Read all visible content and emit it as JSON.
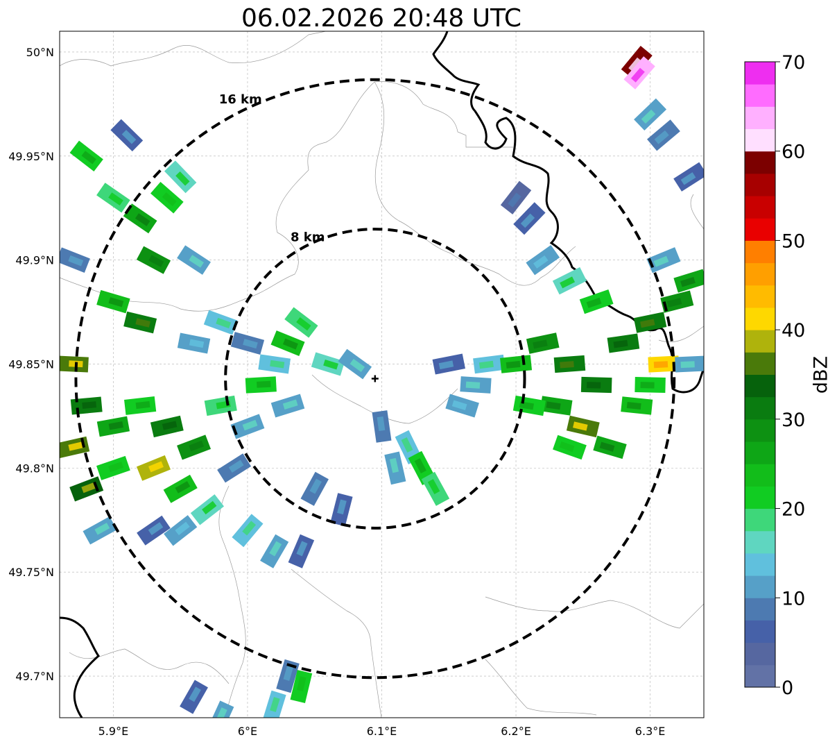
{
  "map": {
    "title": "06.02.2026 20:48 UTC",
    "extent": {
      "lon_min": 5.86,
      "lon_max": 6.34,
      "lat_min": 49.68,
      "lat_max": 50.01
    },
    "radar_center": {
      "lon": 6.095,
      "lat": 49.843
    },
    "x_ticks": [
      {
        "value": 5.9,
        "label": "5.9°E"
      },
      {
        "value": 6.0,
        "label": "6°E"
      },
      {
        "value": 6.1,
        "label": "6.1°E"
      },
      {
        "value": 6.2,
        "label": "6.2°E"
      },
      {
        "value": 6.3,
        "label": "6.3°E"
      }
    ],
    "y_ticks": [
      {
        "value": 50.0,
        "label": "50°N"
      },
      {
        "value": 49.95,
        "label": "49.95°N"
      },
      {
        "value": 49.9,
        "label": "49.9°N"
      },
      {
        "value": 49.85,
        "label": "49.85°N"
      },
      {
        "value": 49.8,
        "label": "49.8°N"
      },
      {
        "value": 49.75,
        "label": "49.75°N"
      },
      {
        "value": 49.7,
        "label": "49.7°N"
      }
    ],
    "range_rings": [
      {
        "radius_km": 8,
        "label": "8 km"
      },
      {
        "radius_km": 16,
        "label": "16 km"
      }
    ],
    "gridlines": true
  },
  "colorbar": {
    "label": "dBZ",
    "ticks": [
      "0",
      "10",
      "20",
      "30",
      "40",
      "50",
      "60",
      "70"
    ],
    "min": 0,
    "max": 70,
    "step": 2.5,
    "colors": [
      "#6272a6",
      "#5667a0",
      "#4661a8",
      "#4d7ab1",
      "#56a0c8",
      "#60c0dd",
      "#5fd6c0",
      "#3ed77a",
      "#11cc22",
      "#12bd1a",
      "#0ea616",
      "#0d9112",
      "#0a7c10",
      "#06620c",
      "#4a7a0a",
      "#afb30c",
      "#fed800",
      "#ffbb00",
      "#ff9f00",
      "#ff7f00",
      "#e90000",
      "#c90000",
      "#a70000",
      "#7c0000",
      "#ffdfff",
      "#ffb0ff",
      "#ff6cff",
      "#ee2ef0"
    ]
  },
  "reflectivity_cells": [
    {
      "lon": 5.88,
      "lat": 49.95,
      "dbz": 22
    },
    {
      "lon": 5.9,
      "lat": 49.93,
      "dbz": 18
    },
    {
      "lon": 5.92,
      "lat": 49.92,
      "dbz": 26
    },
    {
      "lon": 5.94,
      "lat": 49.93,
      "dbz": 20
    },
    {
      "lon": 5.93,
      "lat": 49.9,
      "dbz": 28
    },
    {
      "lon": 5.9,
      "lat": 49.88,
      "dbz": 24
    },
    {
      "lon": 5.87,
      "lat": 49.9,
      "dbz": 8
    },
    {
      "lon": 5.96,
      "lat": 49.9,
      "dbz": 12
    },
    {
      "lon": 5.91,
      "lat": 49.96,
      "dbz": 6
    },
    {
      "lon": 5.95,
      "lat": 49.94,
      "dbz": 16
    },
    {
      "lon": 5.92,
      "lat": 49.87,
      "dbz": 32
    },
    {
      "lon": 5.96,
      "lat": 49.86,
      "dbz": 10
    },
    {
      "lon": 5.98,
      "lat": 49.87,
      "dbz": 14
    },
    {
      "lon": 5.87,
      "lat": 49.85,
      "dbz": 36
    },
    {
      "lon": 5.88,
      "lat": 49.83,
      "dbz": 30
    },
    {
      "lon": 5.9,
      "lat": 49.82,
      "dbz": 26
    },
    {
      "lon": 5.92,
      "lat": 49.83,
      "dbz": 22
    },
    {
      "lon": 5.94,
      "lat": 49.82,
      "dbz": 30
    },
    {
      "lon": 5.96,
      "lat": 49.81,
      "dbz": 28
    },
    {
      "lon": 5.95,
      "lat": 49.79,
      "dbz": 24
    },
    {
      "lon": 5.93,
      "lat": 49.8,
      "dbz": 38
    },
    {
      "lon": 5.9,
      "lat": 49.8,
      "dbz": 20
    },
    {
      "lon": 5.88,
      "lat": 49.79,
      "dbz": 34
    },
    {
      "lon": 5.87,
      "lat": 49.81,
      "dbz": 37
    },
    {
      "lon": 5.98,
      "lat": 49.83,
      "dbz": 18
    },
    {
      "lon": 6.0,
      "lat": 49.82,
      "dbz": 12
    },
    {
      "lon": 5.99,
      "lat": 49.8,
      "dbz": 8
    },
    {
      "lon": 5.97,
      "lat": 49.78,
      "dbz": 16
    },
    {
      "lon": 5.95,
      "lat": 49.77,
      "dbz": 10
    },
    {
      "lon": 5.93,
      "lat": 49.77,
      "dbz": 6
    },
    {
      "lon": 6.0,
      "lat": 49.77,
      "dbz": 14
    },
    {
      "lon": 6.02,
      "lat": 49.76,
      "dbz": 12
    },
    {
      "lon": 6.04,
      "lat": 49.76,
      "dbz": 6
    },
    {
      "lon": 5.89,
      "lat": 49.77,
      "dbz": 12
    },
    {
      "lon": 6.01,
      "lat": 49.84,
      "dbz": 22
    },
    {
      "lon": 6.03,
      "lat": 49.86,
      "dbz": 24
    },
    {
      "lon": 6.04,
      "lat": 49.87,
      "dbz": 18
    },
    {
      "lon": 6.02,
      "lat": 49.85,
      "dbz": 14
    },
    {
      "lon": 6.03,
      "lat": 49.83,
      "dbz": 12
    },
    {
      "lon": 6.0,
      "lat": 49.86,
      "dbz": 8
    },
    {
      "lon": 6.06,
      "lat": 49.85,
      "dbz": 16
    },
    {
      "lon": 6.08,
      "lat": 49.85,
      "dbz": 12
    },
    {
      "lon": 6.1,
      "lat": 49.82,
      "dbz": 8
    },
    {
      "lon": 6.12,
      "lat": 49.81,
      "dbz": 14
    },
    {
      "lon": 6.13,
      "lat": 49.8,
      "dbz": 22
    },
    {
      "lon": 6.11,
      "lat": 49.8,
      "dbz": 12
    },
    {
      "lon": 6.14,
      "lat": 49.79,
      "dbz": 18
    },
    {
      "lon": 6.07,
      "lat": 49.78,
      "dbz": 6
    },
    {
      "lon": 6.05,
      "lat": 49.79,
      "dbz": 8
    },
    {
      "lon": 6.15,
      "lat": 49.85,
      "dbz": 6
    },
    {
      "lon": 6.17,
      "lat": 49.84,
      "dbz": 12
    },
    {
      "lon": 6.18,
      "lat": 49.85,
      "dbz": 14
    },
    {
      "lon": 6.16,
      "lat": 49.83,
      "dbz": 10
    },
    {
      "lon": 6.2,
      "lat": 49.85,
      "dbz": 24
    },
    {
      "lon": 6.22,
      "lat": 49.86,
      "dbz": 28
    },
    {
      "lon": 6.24,
      "lat": 49.85,
      "dbz": 32
    },
    {
      "lon": 6.26,
      "lat": 49.84,
      "dbz": 30
    },
    {
      "lon": 6.23,
      "lat": 49.83,
      "dbz": 26
    },
    {
      "lon": 6.21,
      "lat": 49.83,
      "dbz": 22
    },
    {
      "lon": 6.25,
      "lat": 49.82,
      "dbz": 37
    },
    {
      "lon": 6.27,
      "lat": 49.81,
      "dbz": 26
    },
    {
      "lon": 6.24,
      "lat": 49.81,
      "dbz": 20
    },
    {
      "lon": 6.29,
      "lat": 49.83,
      "dbz": 24
    },
    {
      "lon": 6.28,
      "lat": 49.86,
      "dbz": 30
    },
    {
      "lon": 6.3,
      "lat": 49.87,
      "dbz": 32
    },
    {
      "lon": 6.31,
      "lat": 49.85,
      "dbz": 41
    },
    {
      "lon": 6.3,
      "lat": 49.84,
      "dbz": 22
    },
    {
      "lon": 6.32,
      "lat": 49.88,
      "dbz": 28
    },
    {
      "lon": 6.33,
      "lat": 49.89,
      "dbz": 26
    },
    {
      "lon": 6.31,
      "lat": 49.9,
      "dbz": 12
    },
    {
      "lon": 6.26,
      "lat": 49.88,
      "dbz": 22
    },
    {
      "lon": 6.24,
      "lat": 49.89,
      "dbz": 16
    },
    {
      "lon": 6.22,
      "lat": 49.9,
      "dbz": 10
    },
    {
      "lon": 6.21,
      "lat": 49.92,
      "dbz": 6
    },
    {
      "lon": 6.2,
      "lat": 49.93,
      "dbz": 4
    },
    {
      "lon": 6.3,
      "lat": 49.97,
      "dbz": 12
    },
    {
      "lon": 6.31,
      "lat": 49.96,
      "dbz": 8
    },
    {
      "lon": 6.33,
      "lat": 49.94,
      "dbz": 6
    },
    {
      "lon": 6.33,
      "lat": 49.85,
      "dbz": 12
    },
    {
      "lon": 6.29,
      "lat": 49.995,
      "dbz": 58
    },
    {
      "lon": 6.292,
      "lat": 49.99,
      "dbz": 64
    },
    {
      "lon": 5.96,
      "lat": 49.69,
      "dbz": 6
    },
    {
      "lon": 5.98,
      "lat": 49.68,
      "dbz": 12
    },
    {
      "lon": 6.03,
      "lat": 49.7,
      "dbz": 8
    },
    {
      "lon": 6.04,
      "lat": 49.695,
      "dbz": 20
    },
    {
      "lon": 6.02,
      "lat": 49.685,
      "dbz": 14
    }
  ]
}
